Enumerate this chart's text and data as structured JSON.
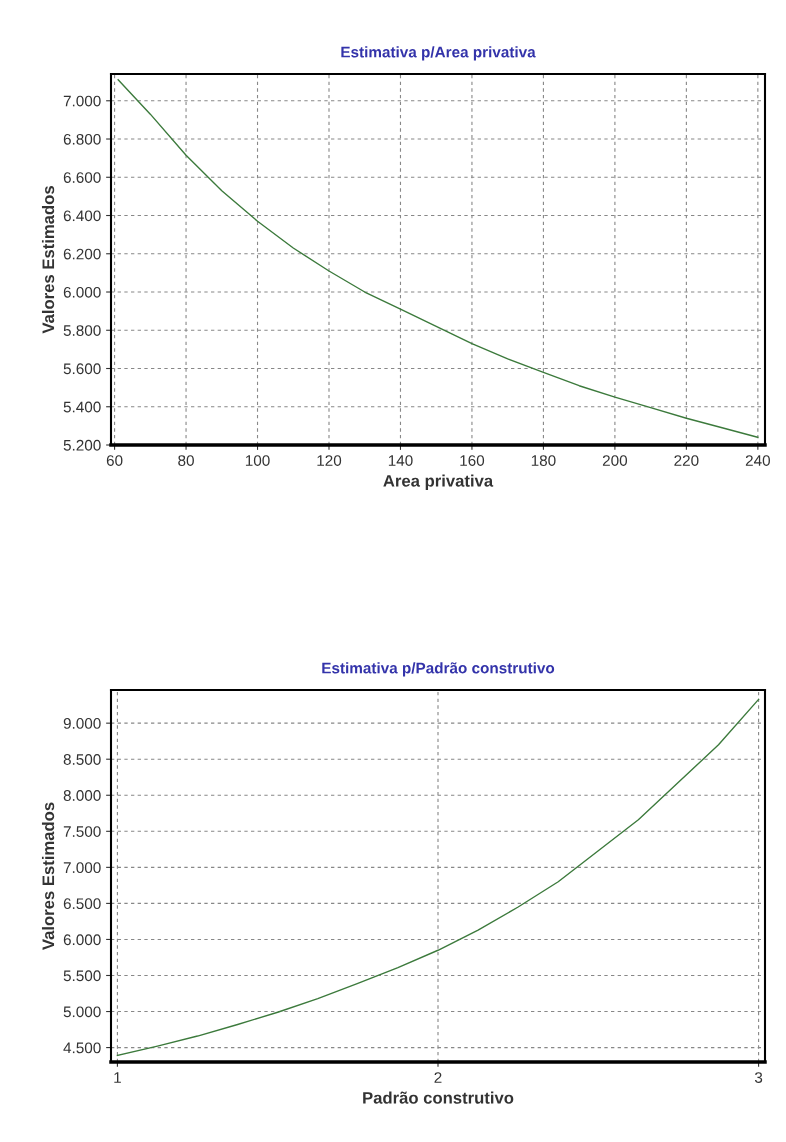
{
  "chart_data": [
    {
      "type": "line",
      "title": "Estimativa p/Area privativa",
      "xlabel": "Area privativa",
      "ylabel": "Valores Estimados",
      "x": [
        61,
        70,
        80,
        90,
        100,
        110,
        120,
        130,
        140,
        150,
        160,
        170,
        180,
        190,
        200,
        210,
        220,
        230,
        240
      ],
      "series": [
        {
          "color": "#3c7a3c",
          "values": [
            7110,
            6930,
            6715,
            6530,
            6370,
            6230,
            6110,
            6000,
            5910,
            5820,
            5730,
            5650,
            5580,
            5510,
            5450,
            5395,
            5340,
            5290,
            5240
          ]
        }
      ],
      "xlim": [
        59,
        242
      ],
      "xticks": [
        60,
        80,
        100,
        120,
        140,
        160,
        180,
        200,
        220,
        240
      ],
      "ylim": [
        5200,
        7140
      ],
      "yticks": [
        {
          "value": 5200,
          "label": "5.200"
        },
        {
          "value": 5400,
          "label": "5.400"
        },
        {
          "value": 5600,
          "label": "5.600"
        },
        {
          "value": 5800,
          "label": "5.800"
        },
        {
          "value": 6000,
          "label": "6.000"
        },
        {
          "value": 6200,
          "label": "6.200"
        },
        {
          "value": 6400,
          "label": "6.400"
        },
        {
          "value": 6600,
          "label": "6.600"
        },
        {
          "value": 6800,
          "label": "6.800"
        },
        {
          "value": 7000,
          "label": "7.000"
        }
      ],
      "grid": true,
      "legend": false
    },
    {
      "type": "line",
      "title": "Estimativa p/Padrão construtivo",
      "xlabel": "Padrão construtivo",
      "ylabel": "Valores Estimados",
      "x": [
        1,
        1.125,
        1.25,
        1.375,
        1.5,
        1.625,
        1.75,
        1.875,
        2,
        2.125,
        2.25,
        2.375,
        2.5,
        2.625,
        2.75,
        2.875,
        3
      ],
      "series": [
        {
          "color": "#3c7a3c",
          "values": [
            4390,
            4520,
            4660,
            4820,
            4990,
            5180,
            5390,
            5610,
            5850,
            6130,
            6450,
            6800,
            7230,
            7660,
            8180,
            8700,
            9330
          ]
        }
      ],
      "xlim": [
        0.98,
        3.02
      ],
      "xticks": [
        1,
        2,
        3
      ],
      "ylim": [
        4300,
        9460
      ],
      "yticks": [
        {
          "value": 4500,
          "label": "4.500"
        },
        {
          "value": 5000,
          "label": "5.000"
        },
        {
          "value": 5500,
          "label": "5.500"
        },
        {
          "value": 6000,
          "label": "6.000"
        },
        {
          "value": 6500,
          "label": "6.500"
        },
        {
          "value": 7000,
          "label": "7.000"
        },
        {
          "value": 7500,
          "label": "7.500"
        },
        {
          "value": 8000,
          "label": "8.000"
        },
        {
          "value": 8500,
          "label": "8.500"
        },
        {
          "value": 9000,
          "label": "9.000"
        }
      ],
      "grid": true,
      "legend": false
    }
  ]
}
